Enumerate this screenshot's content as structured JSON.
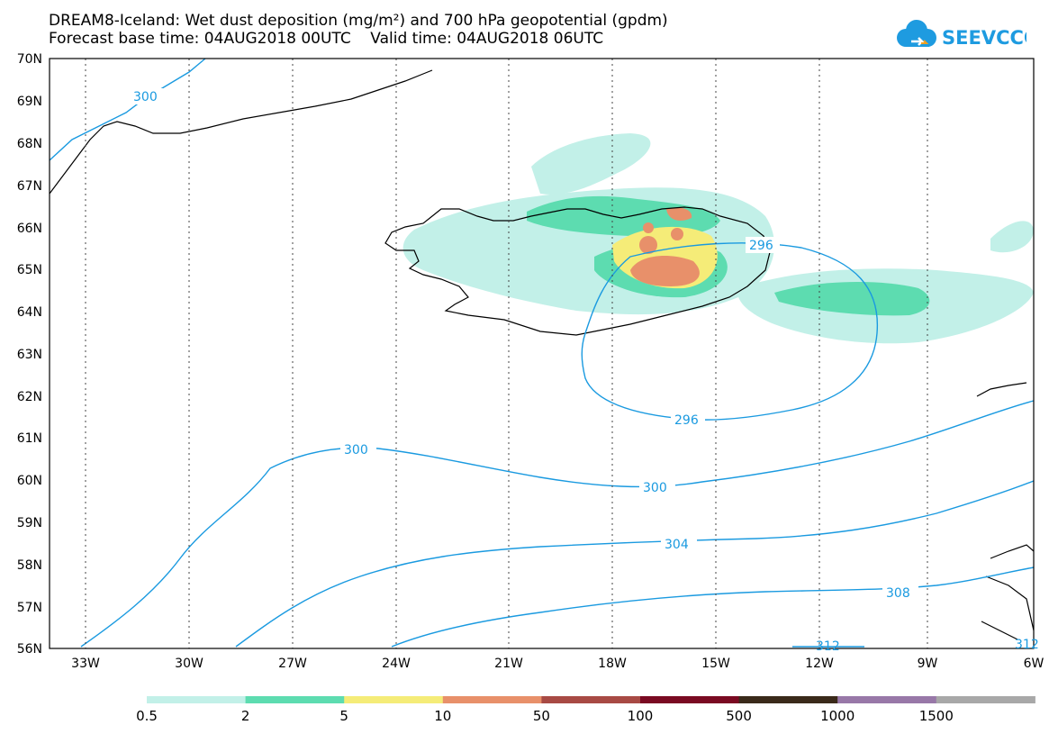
{
  "header": {
    "title_line1": "DREAM8-Iceland: Wet dust deposition (mg/m²) and 700 hPa geopotential (gpdm)",
    "title_line2": "Forecast base time: 04AUG2018 00UTC    Valid time: 04AUG2018 06UTC",
    "logo_text": "SEEVCCC"
  },
  "map": {
    "lat_labels": [
      "70N",
      "69N",
      "68N",
      "67N",
      "66N",
      "65N",
      "64N",
      "63N",
      "62N",
      "61N",
      "60N",
      "59N",
      "58N",
      "57N",
      "56N"
    ],
    "lon_labels": [
      "33W",
      "30W",
      "27W",
      "24W",
      "21W",
      "18W",
      "15W",
      "12W",
      "9W",
      "6W"
    ],
    "contour_labels": [
      "300",
      "296",
      "296",
      "300",
      "300",
      "304",
      "308",
      "312",
      "312"
    ]
  },
  "legend": {
    "colors": [
      "#c2f0e8",
      "#5ddcb0",
      "#f5ec78",
      "#e8906a",
      "#a84a44",
      "#7a0a22",
      "#3a2a1a",
      "#9878a8",
      "#a8a8a8"
    ],
    "labels": [
      "0.5",
      "2",
      "5",
      "10",
      "50",
      "100",
      "500",
      "1000",
      "1500"
    ]
  }
}
